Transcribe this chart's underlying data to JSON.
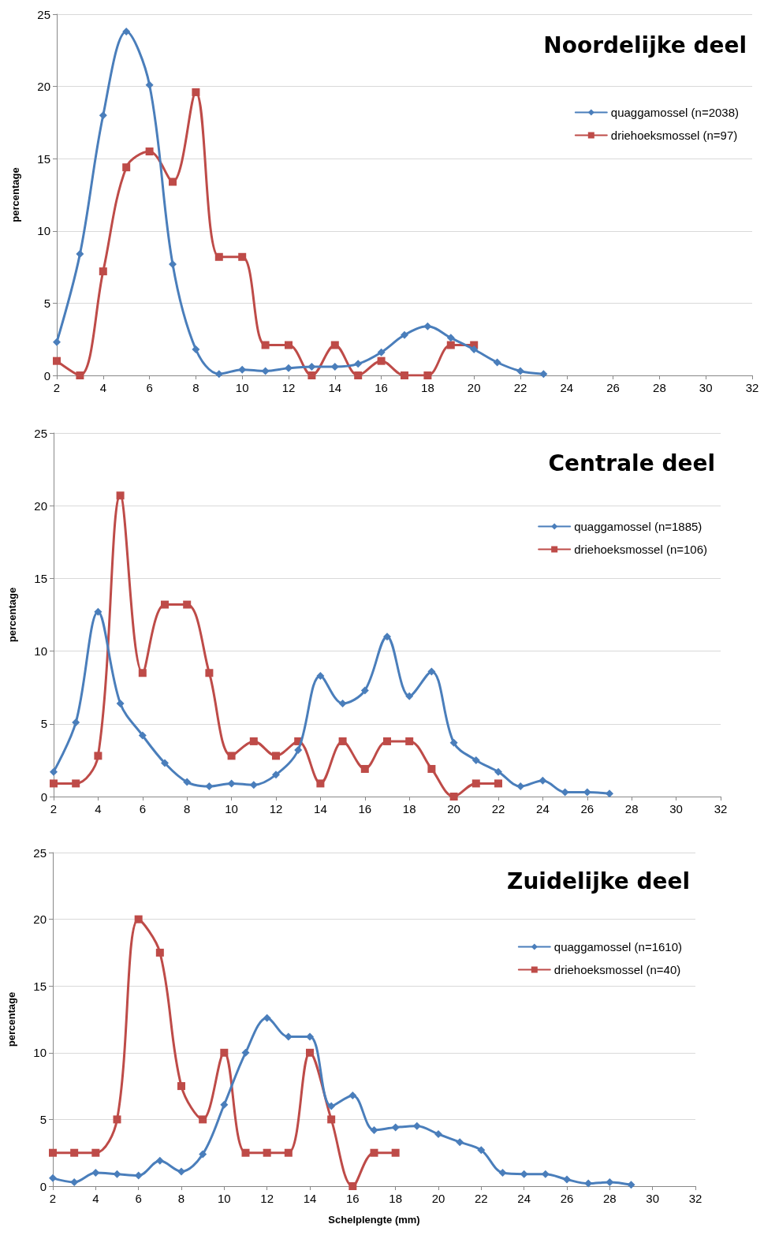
{
  "chart_data": [
    {
      "type": "line",
      "title": "Noordelijke deel",
      "ylabel": "percentage",
      "xlim": [
        2,
        32
      ],
      "xticks": [
        2,
        4,
        6,
        8,
        10,
        12,
        14,
        16,
        18,
        20,
        22,
        24,
        26,
        28,
        30,
        32
      ],
      "ylim": [
        0,
        25
      ],
      "yticks": [
        0,
        5,
        10,
        15,
        20,
        25
      ],
      "grid": "y",
      "legend": "top right",
      "series": [
        {
          "name": "quaggamossel (n=2038)",
          "color": "#4a7ebb",
          "marker": "diamond",
          "x": [
            2,
            3,
            4,
            5,
            6,
            7,
            8,
            9,
            10,
            11,
            12,
            13,
            14,
            15,
            16,
            17,
            18,
            19,
            20,
            21,
            22,
            23
          ],
          "values": [
            2.3,
            8.4,
            18.0,
            23.8,
            20.1,
            7.7,
            1.8,
            0.1,
            0.4,
            0.3,
            0.5,
            0.6,
            0.6,
            0.8,
            1.6,
            2.8,
            3.4,
            2.6,
            1.8,
            0.9,
            0.3,
            0.1
          ]
        },
        {
          "name": "driehoeksmossel (n=97)",
          "color": "#be4b48",
          "marker": "square",
          "x": [
            2,
            3,
            4,
            5,
            6,
            7,
            8,
            9,
            10,
            11,
            12,
            13,
            14,
            15,
            16,
            17,
            18,
            19,
            20
          ],
          "values": [
            1.0,
            0,
            7.2,
            14.4,
            15.5,
            13.4,
            19.6,
            8.2,
            8.2,
            2.1,
            2.1,
            0,
            2.1,
            0,
            1.0,
            0,
            0,
            2.1,
            2.1
          ]
        }
      ]
    },
    {
      "type": "line",
      "title": "Centrale deel",
      "ylabel": "percentage",
      "xlim": [
        2,
        32
      ],
      "xticks": [
        2,
        4,
        6,
        8,
        10,
        12,
        14,
        16,
        18,
        20,
        22,
        24,
        26,
        28,
        30,
        32
      ],
      "ylim": [
        0,
        25
      ],
      "yticks": [
        0,
        5,
        10,
        15,
        20,
        25
      ],
      "grid": "y",
      "legend": "top right",
      "series": [
        {
          "name": "quaggamossel (n=1885)",
          "color": "#4a7ebb",
          "marker": "diamond",
          "x": [
            2,
            3,
            4,
            5,
            6,
            7,
            8,
            9,
            10,
            11,
            12,
            13,
            14,
            15,
            16,
            17,
            18,
            19,
            20,
            21,
            22,
            23,
            24,
            25,
            26,
            27
          ],
          "values": [
            1.7,
            5.1,
            12.7,
            6.4,
            4.2,
            2.3,
            1.0,
            0.7,
            0.9,
            0.8,
            1.5,
            3.2,
            8.3,
            6.4,
            7.3,
            11.0,
            6.9,
            8.6,
            3.7,
            2.5,
            1.7,
            0.7,
            1.1,
            0.3,
            0.3,
            0.2
          ]
        },
        {
          "name": "driehoeksmossel (n=106)",
          "color": "#be4b48",
          "marker": "square",
          "x": [
            2,
            3,
            4,
            5,
            6,
            7,
            8,
            9,
            10,
            11,
            12,
            13,
            14,
            15,
            16,
            17,
            18,
            19,
            20,
            21,
            22
          ],
          "values": [
            0.9,
            0.9,
            2.8,
            20.7,
            8.5,
            13.2,
            13.2,
            8.5,
            2.8,
            3.8,
            2.8,
            3.8,
            0.9,
            3.8,
            1.9,
            3.8,
            3.8,
            1.9,
            0,
            0.9,
            0.9
          ]
        }
      ]
    },
    {
      "type": "line",
      "title": "Zuidelijke deel",
      "xlabel": "Schelplengte (mm)",
      "ylabel": "percentage",
      "xlim": [
        2,
        32
      ],
      "xticks": [
        2,
        4,
        6,
        8,
        10,
        12,
        14,
        16,
        18,
        20,
        22,
        24,
        26,
        28,
        30,
        32
      ],
      "ylim": [
        0,
        25
      ],
      "yticks": [
        0,
        5,
        10,
        15,
        20,
        25
      ],
      "grid": "y",
      "legend": "top right",
      "series": [
        {
          "name": "quaggamossel (n=1610)",
          "color": "#4a7ebb",
          "marker": "diamond",
          "x": [
            2,
            3,
            4,
            5,
            6,
            7,
            8,
            9,
            10,
            11,
            12,
            13,
            14,
            15,
            16,
            17,
            18,
            19,
            20,
            21,
            22,
            23,
            24,
            25,
            26,
            27,
            28,
            29
          ],
          "values": [
            0.6,
            0.3,
            1.0,
            0.9,
            0.8,
            1.9,
            1.1,
            2.4,
            6.1,
            10.0,
            12.6,
            11.2,
            11.2,
            6.0,
            6.8,
            4.2,
            4.4,
            4.5,
            3.9,
            3.3,
            2.7,
            1.0,
            0.9,
            0.9,
            0.5,
            0.2,
            0.3,
            0.1
          ]
        },
        {
          "name": "driehoeksmossel (n=40)",
          "color": "#be4b48",
          "marker": "square",
          "x": [
            2,
            3,
            4,
            5,
            6,
            7,
            8,
            9,
            10,
            11,
            12,
            13,
            14,
            15,
            16,
            17,
            18
          ],
          "values": [
            2.5,
            2.5,
            2.5,
            5.0,
            20.0,
            17.5,
            7.5,
            5.0,
            10.0,
            2.5,
            2.5,
            2.5,
            10.0,
            5.0,
            0,
            2.5,
            2.5
          ]
        }
      ]
    }
  ]
}
